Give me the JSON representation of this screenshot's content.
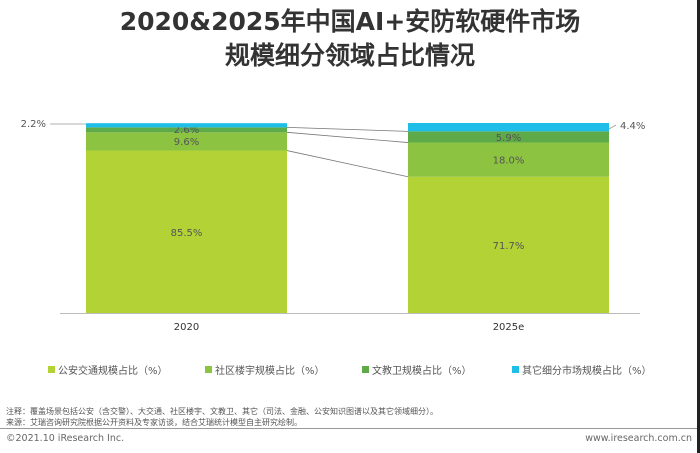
{
  "title_line1": "2020&2025年中国AI+安防软硬件市场",
  "title_line2": "规模细分领域占比情况",
  "chart_data": {
    "type": "stacked-bar-100",
    "categories": [
      "2020",
      "2025e"
    ],
    "series": [
      {
        "name": "公安交通规模占比（%）",
        "values": [
          85.5,
          71.7
        ],
        "color": "#b2d235"
      },
      {
        "name": "社区楼宇规模占比（%）",
        "values": [
          9.6,
          18.0
        ],
        "color": "#8cc341"
      },
      {
        "name": "文教卫规模占比（%）",
        "values": [
          2.6,
          5.9
        ],
        "color": "#5ea948"
      },
      {
        "name": "其它细分市场规模占比（%）",
        "values": [
          2.2,
          4.4
        ],
        "color": "#1fbee8"
      }
    ],
    "data_labels": [
      [
        "85.5%",
        "71.7%"
      ],
      [
        "9.6%",
        "18.0%"
      ],
      [
        "2.6%",
        "5.9%"
      ],
      [
        "2.2%",
        "4.4%"
      ]
    ],
    "ylim": [
      0,
      100
    ],
    "legend": "bottom"
  },
  "notes": {
    "note": "注释：覆盖场景包括公安（含交警）、大交通、社区楼宇、文教卫、其它（司法、金融、公安知识图谱以及其它领域细分）。",
    "source": "来源：艾瑞咨询研究院根据公开资料及专家访谈，结合艾瑞统计模型自主研究绘制。"
  },
  "footer": {
    "copyright": "©2021.10 iResearch Inc.",
    "website": "www.iresearch.com.cn"
  }
}
